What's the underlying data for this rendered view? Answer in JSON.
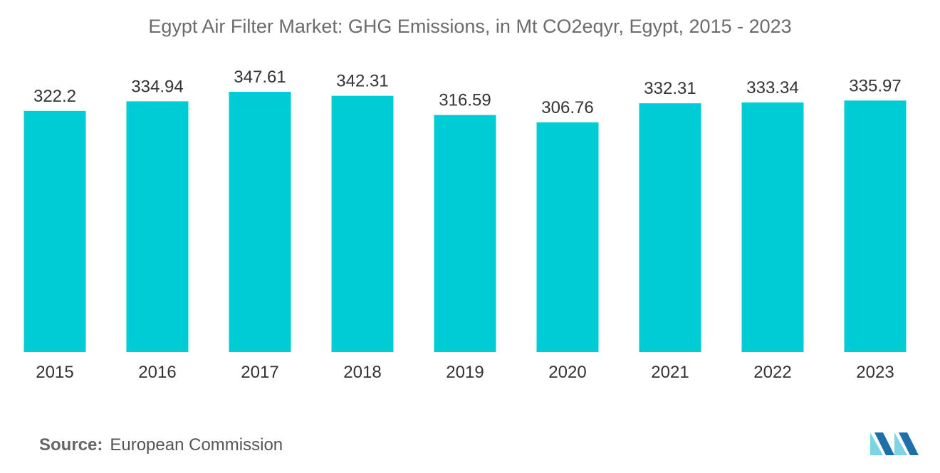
{
  "colors": {
    "bar": "#00CCD6",
    "logo_light": "#7fd3e6",
    "logo_dark": "#1f6fa8"
  },
  "chart_data": {
    "type": "bar",
    "title": "Egypt Air Filter Market: GHG Emissions, in Mt CO2eqyr, Egypt, 2015 - 2023",
    "categories": [
      "2015",
      "2016",
      "2017",
      "2018",
      "2019",
      "2020",
      "2021",
      "2022",
      "2023"
    ],
    "values": [
      322.2,
      334.94,
      347.61,
      342.31,
      316.59,
      306.76,
      332.31,
      333.34,
      335.97
    ],
    "value_labels": [
      "322.2",
      "334.94",
      "347.61",
      "342.31",
      "316.59",
      "306.76",
      "332.31",
      "333.34",
      "335.97"
    ],
    "xlabel": "",
    "ylabel": "",
    "ylim": [
      0,
      380
    ],
    "grid": false,
    "legend": "none"
  },
  "footer": {
    "source_label": "Source:",
    "source_value": "European Commission"
  },
  "logo": {
    "icon": "mordor-intelligence-logo-icon"
  }
}
